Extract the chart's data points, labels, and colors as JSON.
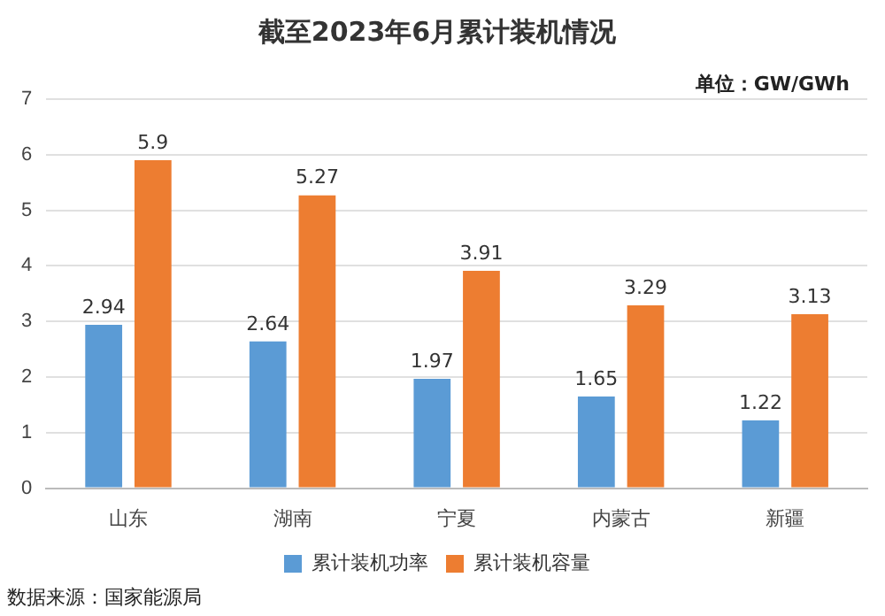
{
  "chart_data": {
    "type": "bar",
    "title": "截至2023年6月累计装机情况",
    "categories": [
      "山东",
      "湖南",
      "宁夏",
      "内蒙古",
      "新疆"
    ],
    "series": [
      {
        "name": "累计装机功率",
        "color": "#5b9bd5",
        "values": [
          2.94,
          2.64,
          1.97,
          1.65,
          1.22
        ]
      },
      {
        "name": "累计装机容量",
        "color": "#ed7d31",
        "values": [
          5.9,
          5.27,
          3.91,
          3.29,
          3.13
        ]
      }
    ],
    "ylim": [
      0,
      7
    ],
    "yticks": [
      0,
      1,
      2,
      3,
      4,
      5,
      6,
      7
    ],
    "grid": "y",
    "legend": "bottom",
    "data_labels": true,
    "annotations": [
      "单位：GW/GWh",
      "数据来源：国家能源局"
    ]
  }
}
